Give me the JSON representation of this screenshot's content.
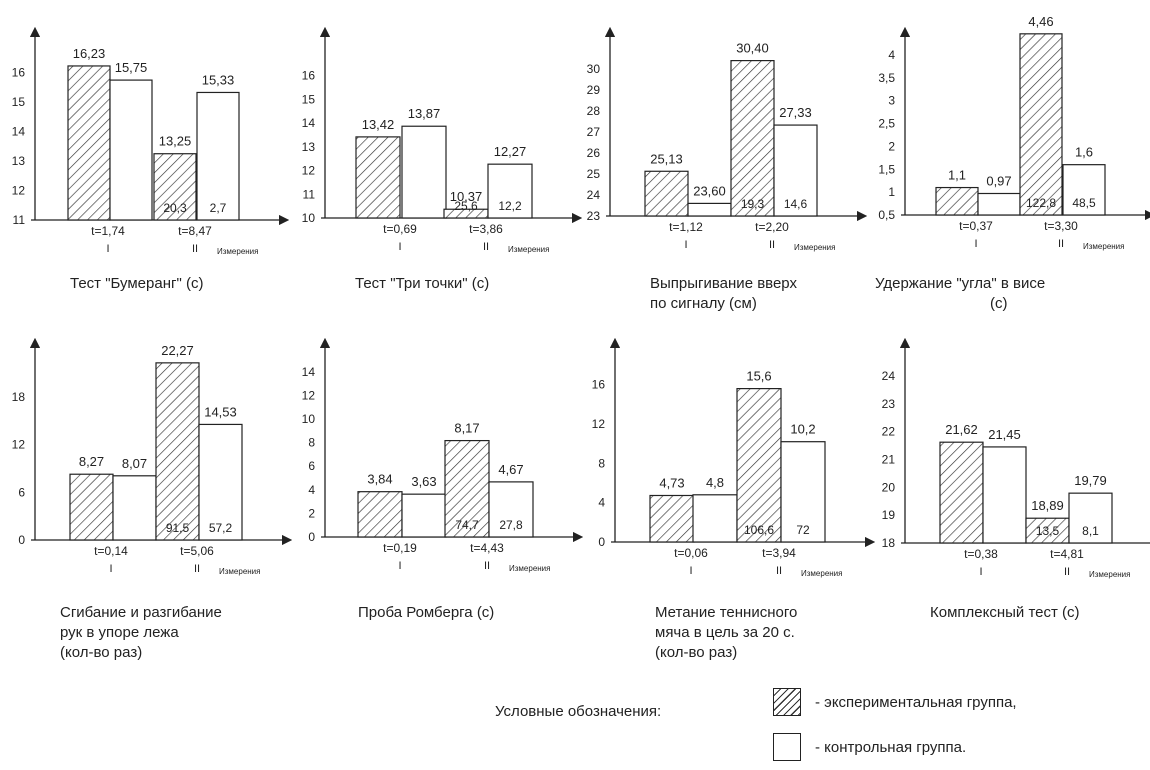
{
  "chart_data": [
    {
      "type": "bar",
      "title": "Тест \"Бумеранг\" (с)",
      "xlabel": "Измерения",
      "categories": [
        "I",
        "II"
      ],
      "ylim": [
        11,
        16.5
      ],
      "yticks": [
        11,
        12,
        13,
        14,
        15,
        16
      ],
      "series": [
        {
          "values": [
            16.23,
            13.25
          ],
          "value_labels": [
            "16,23",
            "13,25"
          ],
          "inner_labels": [
            "",
            "20,3"
          ]
        },
        {
          "values": [
            15.75,
            15.33
          ],
          "value_labels": [
            "15,75",
            "15,33"
          ],
          "inner_labels": [
            "",
            "2,7"
          ]
        }
      ],
      "t_labels": [
        "t=1,74",
        "t=8,47"
      ]
    },
    {
      "type": "bar",
      "title": "Тест \"Три точки\" (с)",
      "xlabel": "Измерения",
      "categories": [
        "I",
        "II"
      ],
      "ylim": [
        10,
        17
      ],
      "yticks": [
        10,
        11,
        12,
        13,
        14,
        15,
        16
      ],
      "series": [
        {
          "values": [
            13.42,
            10.37
          ],
          "value_labels": [
            "13,42",
            "10,37"
          ],
          "inner_labels": [
            "",
            "25,6"
          ]
        },
        {
          "values": [
            13.87,
            12.27
          ],
          "value_labels": [
            "13,87",
            "12,27"
          ],
          "inner_labels": [
            "",
            "12,2"
          ]
        }
      ],
      "t_labels": [
        "t=0,69",
        "t=3,86"
      ]
    },
    {
      "type": "bar",
      "title": "Выпрыгивание вверх по сигналу (см)",
      "xlabel": "Измерения",
      "categories": [
        "I",
        "II"
      ],
      "ylim": [
        23,
        31
      ],
      "yticks": [
        23,
        24,
        25,
        26,
        27,
        28,
        29,
        30
      ],
      "series": [
        {
          "values": [
            25.13,
            30.4
          ],
          "value_labels": [
            "25,13",
            "30,40"
          ],
          "inner_labels": [
            "",
            "19,3"
          ]
        },
        {
          "values": [
            23.6,
            27.33
          ],
          "value_labels": [
            "23,60",
            "27,33"
          ],
          "inner_labels": [
            "",
            "14,6"
          ]
        }
      ],
      "t_labels": [
        "t=1,12",
        "t=2,20"
      ]
    },
    {
      "type": "bar",
      "title": "Удержание \"угла\" в висе (с)",
      "xlabel": "Измерения",
      "categories": [
        "I",
        "II"
      ],
      "ylim": [
        0.5,
        4.5
      ],
      "yticks": [
        0.5,
        1,
        1.5,
        2,
        2.5,
        3,
        3.5,
        4
      ],
      "series": [
        {
          "values": [
            1.1,
            4.46
          ],
          "value_labels": [
            "1,1",
            "4,46"
          ],
          "inner_labels": [
            "",
            "122,8"
          ]
        },
        {
          "values": [
            0.97,
            1.6
          ],
          "value_labels": [
            "0,97",
            "1,6"
          ],
          "inner_labels": [
            "",
            "48,5"
          ]
        }
      ],
      "t_labels": [
        "t=0,37",
        "t=3,30"
      ]
    },
    {
      "type": "bar",
      "title": "Сгибание и разгибание рук в упоре лежа (кол-во раз)",
      "xlabel": "Измерения",
      "categories": [
        "I",
        "II"
      ],
      "ylim": [
        0,
        22
      ],
      "yticks": [
        0,
        6,
        12,
        18
      ],
      "series": [
        {
          "values": [
            8.27,
            22.27
          ],
          "value_labels": [
            "8,27",
            "22,27"
          ],
          "inner_labels": [
            "",
            "91,5"
          ]
        },
        {
          "values": [
            8.07,
            14.53
          ],
          "value_labels": [
            "8,07",
            "14,53"
          ],
          "inner_labels": [
            "",
            "57,2"
          ]
        }
      ],
      "t_labels": [
        "t=0,14",
        "t=5,06"
      ]
    },
    {
      "type": "bar",
      "title": "Проба Ромберга (с)",
      "xlabel": "Измерения",
      "categories": [
        "I",
        "II"
      ],
      "ylim": [
        0,
        15
      ],
      "yticks": [
        0,
        2,
        4,
        6,
        8,
        10,
        12,
        14
      ],
      "series": [
        {
          "values": [
            3.84,
            8.17
          ],
          "value_labels": [
            "3,84",
            "8,17"
          ],
          "inner_labels": [
            "",
            "74,7"
          ]
        },
        {
          "values": [
            3.63,
            4.67
          ],
          "value_labels": [
            "3,63",
            "4,67"
          ],
          "inner_labels": [
            "",
            "27,8"
          ]
        }
      ],
      "t_labels": [
        "t=0,19",
        "t=4,43"
      ]
    },
    {
      "type": "bar",
      "title": "Метание теннисного мяча в цель за 20 с. (кол-во раз)",
      "xlabel": "Измерения",
      "categories": [
        "I",
        "II"
      ],
      "ylim": [
        0,
        18
      ],
      "yticks": [
        0,
        4,
        8,
        12,
        16
      ],
      "series": [
        {
          "values": [
            4.73,
            15.6
          ],
          "value_labels": [
            "4,73",
            "15,6"
          ],
          "inner_labels": [
            "",
            "106,6"
          ]
        },
        {
          "values": [
            4.8,
            10.2
          ],
          "value_labels": [
            "4,8",
            "10,2"
          ],
          "inner_labels": [
            "",
            "72"
          ]
        }
      ],
      "t_labels": [
        "t=0,06",
        "t=3,94"
      ]
    },
    {
      "type": "bar",
      "title": "Комплексный тест (с)",
      "xlabel": "Измерения",
      "categories": [
        "I",
        "II"
      ],
      "ylim": [
        18,
        24.5
      ],
      "yticks": [
        18,
        19,
        20,
        21,
        22,
        23,
        24
      ],
      "series": [
        {
          "values": [
            21.62,
            18.89
          ],
          "value_labels": [
            "21,62",
            "18,89"
          ],
          "inner_labels": [
            "",
            "13,5"
          ]
        },
        {
          "values": [
            21.45,
            19.79
          ],
          "value_labels": [
            "21,45",
            "19,79"
          ],
          "inner_labels": [
            "",
            "8,1"
          ]
        }
      ],
      "t_labels": [
        "t=0,38",
        "t=4,81"
      ]
    }
  ],
  "legend": {
    "title": "Условные обозначения:",
    "items": [
      {
        "label": "- экспериментальная группа,"
      },
      {
        "label": "- контрольная группа."
      }
    ]
  }
}
